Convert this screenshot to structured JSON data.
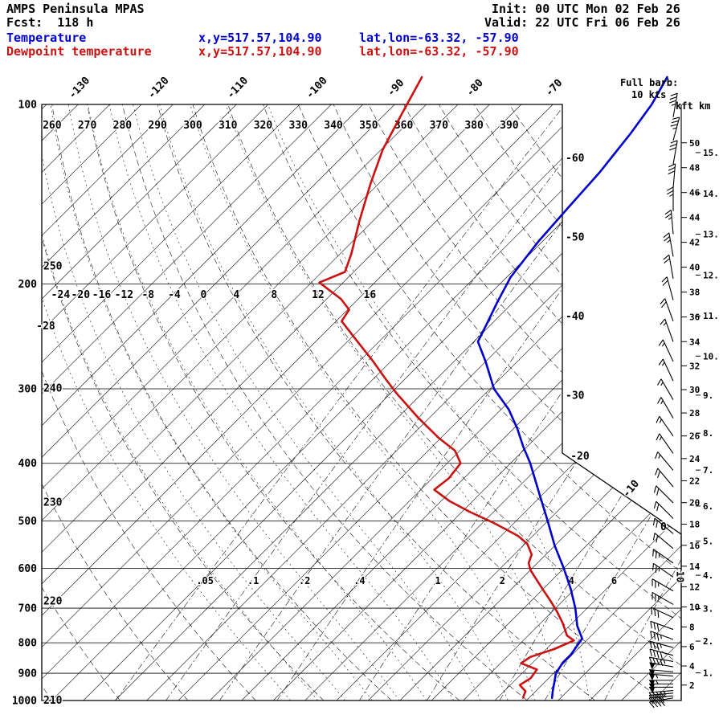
{
  "header": {
    "model": "AMPS Peninsula MPAS",
    "fcst": "Fcst:  118 h",
    "init": "Init: 00 UTC Mon 02 Feb 26",
    "valid": "Valid: 22 UTC Fri 06 Feb 26",
    "temp_label": "Temperature",
    "temp_xy": "x,y=517.57,104.90",
    "temp_latlon": "lat,lon=-63.32, -57.90",
    "dewp_label": "Dewpoint temperature",
    "dewp_xy": "x,y=517.57,104.90",
    "dewp_latlon": "lat,lon=-63.32, -57.90"
  },
  "barb_legend": {
    "line1": "Full barb:",
    "line2": "10 kts"
  },
  "height_axis": {
    "kft_label": "kft",
    "km_label": "km",
    "kft_values": [
      50,
      48,
      46,
      44,
      42,
      40,
      38,
      36,
      34,
      32,
      30,
      28,
      26,
      24,
      22,
      20,
      18,
      16,
      14,
      12,
      10,
      8,
      6,
      4,
      2
    ],
    "km_values": [
      15,
      14,
      13,
      12,
      11,
      10,
      9,
      8,
      7,
      6,
      5,
      4,
      3,
      2,
      1
    ]
  },
  "colors": {
    "temperature": "#0000cd",
    "dewpoint": "#cc1111",
    "grid": "#000000",
    "background": "#ffffff"
  },
  "chart_data": {
    "type": "skewt-logp",
    "pressure_axis_hPa": [
      100,
      200,
      300,
      400,
      500,
      600,
      700,
      800,
      900,
      1000
    ],
    "isotherm_step_c": 4,
    "isotherm_range_c": {
      "min": -136,
      "max": 24
    },
    "isotherm_labels_top_c": [
      -130,
      -120,
      -110,
      -100,
      -90,
      -80,
      -70
    ],
    "isotherm_labels_right_c": [
      -60,
      -50,
      -40,
      -30,
      -20,
      -10,
      0
    ],
    "dry_adiabat_labels_k": [
      210,
      220,
      230,
      240,
      250,
      260,
      270,
      280,
      290,
      300,
      310,
      320,
      330,
      340,
      350,
      360,
      370,
      380,
      390
    ],
    "moist_adiabat_labels_c": [
      -28,
      -24,
      -20,
      -16,
      -12,
      -8,
      -4,
      0,
      4,
      8,
      12,
      16
    ],
    "mixing_ratio_labels_g_kg": [
      0.05,
      0.1,
      0.2,
      0.4,
      1,
      2,
      4,
      6,
      10
    ],
    "temperature_profile_p_T": [
      [
        90,
        -57
      ],
      [
        100,
        -55.5
      ],
      [
        112,
        -54.5
      ],
      [
        130,
        -53.5
      ],
      [
        150,
        -53
      ],
      [
        170,
        -52.5
      ],
      [
        195,
        -51.5
      ],
      [
        215,
        -50
      ],
      [
        235,
        -48.5
      ],
      [
        250,
        -47.5
      ],
      [
        270,
        -44
      ],
      [
        300,
        -39.5
      ],
      [
        325,
        -35
      ],
      [
        350,
        -31.5
      ],
      [
        375,
        -28.5
      ],
      [
        400,
        -25.5
      ],
      [
        450,
        -20.5
      ],
      [
        500,
        -16
      ],
      [
        550,
        -12
      ],
      [
        600,
        -8
      ],
      [
        650,
        -4.5
      ],
      [
        700,
        -1.5
      ],
      [
        750,
        1
      ],
      [
        787,
        3.2
      ],
      [
        837,
        3.8
      ],
      [
        864,
        3.8
      ],
      [
        901,
        4.3
      ],
      [
        935,
        5.3
      ],
      [
        967,
        6.2
      ],
      [
        990,
        6.9
      ]
    ],
    "dewpoint_profile_p_T": [
      [
        90,
        -88
      ],
      [
        103,
        -86
      ],
      [
        119,
        -83.8
      ],
      [
        136,
        -81
      ],
      [
        157,
        -77.7
      ],
      [
        178,
        -74.6
      ],
      [
        191,
        -73.1
      ],
      [
        199,
        -75
      ],
      [
        212,
        -70.2
      ],
      [
        221,
        -67.8
      ],
      [
        231,
        -67.3
      ],
      [
        250,
        -62.7
      ],
      [
        270,
        -58.2
      ],
      [
        289,
        -54.4
      ],
      [
        306,
        -51.1
      ],
      [
        335,
        -45.5
      ],
      [
        362,
        -40.4
      ],
      [
        381,
        -36.6
      ],
      [
        400,
        -34.3
      ],
      [
        424,
        -33.9
      ],
      [
        443,
        -34.3
      ],
      [
        463,
        -30.9
      ],
      [
        483,
        -26.9
      ],
      [
        502,
        -22.9
      ],
      [
        517,
        -20.1
      ],
      [
        530,
        -17.8
      ],
      [
        546,
        -15.7
      ],
      [
        569,
        -13.8
      ],
      [
        588,
        -13.1
      ],
      [
        604,
        -12
      ],
      [
        627,
        -10
      ],
      [
        652,
        -7.9
      ],
      [
        680,
        -5.6
      ],
      [
        709,
        -3.4
      ],
      [
        740,
        -1.3
      ],
      [
        778,
        0.9
      ],
      [
        793,
        2.4
      ],
      [
        820,
        1
      ],
      [
        845,
        -1
      ],
      [
        866,
        -1.4
      ],
      [
        887,
        1.4
      ],
      [
        917,
        1.7
      ],
      [
        942,
        1.2
      ],
      [
        965,
        2.7
      ],
      [
        989,
        3.2
      ]
    ],
    "wind_barbs_p_kt_dir": [
      [
        105,
        35,
        10
      ],
      [
        115,
        35,
        15
      ],
      [
        126,
        30,
        10
      ],
      [
        138,
        30,
        5
      ],
      [
        151,
        25,
        0
      ],
      [
        165,
        25,
        355
      ],
      [
        180,
        25,
        350
      ],
      [
        196,
        20,
        350
      ],
      [
        213,
        20,
        345
      ],
      [
        231,
        20,
        340
      ],
      [
        250,
        15,
        340
      ],
      [
        270,
        15,
        335
      ],
      [
        291,
        15,
        335
      ],
      [
        313,
        15,
        330
      ],
      [
        336,
        15,
        330
      ],
      [
        360,
        15,
        325
      ],
      [
        385,
        15,
        325
      ],
      [
        411,
        15,
        320
      ],
      [
        438,
        20,
        320
      ],
      [
        466,
        20,
        315
      ],
      [
        495,
        20,
        315
      ],
      [
        525,
        20,
        310
      ],
      [
        556,
        20,
        310
      ],
      [
        588,
        25,
        305
      ],
      [
        621,
        25,
        305
      ],
      [
        655,
        25,
        300
      ],
      [
        690,
        25,
        300
      ],
      [
        726,
        30,
        295
      ],
      [
        760,
        30,
        290
      ],
      [
        790,
        35,
        290
      ],
      [
        815,
        35,
        285
      ],
      [
        840,
        40,
        285
      ],
      [
        860,
        45,
        280
      ],
      [
        878,
        50,
        280
      ],
      [
        895,
        50,
        275
      ],
      [
        910,
        55,
        275
      ],
      [
        925,
        55,
        270
      ],
      [
        938,
        50,
        270
      ],
      [
        950,
        50,
        270
      ],
      [
        962,
        45,
        265
      ],
      [
        972,
        45,
        265
      ],
      [
        982,
        40,
        265
      ],
      [
        990,
        40,
        260
      ]
    ]
  }
}
